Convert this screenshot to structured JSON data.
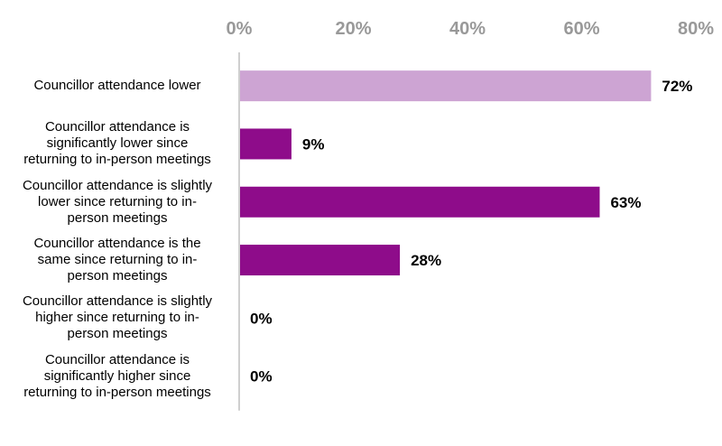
{
  "chart_data": {
    "type": "bar",
    "orientation": "horizontal",
    "categories": [
      "Councillor attendance lower",
      "Councillor attendance is significantly lower since returning to in-person meetings",
      "Councillor attendance is slightly lower since returning to in-person meetings",
      "Councillor attendance is the same since returning to in-person meetings",
      "Councillor attendance is slightly higher since returning to in-person meetings",
      "Councillor attendance is significantly higher since returning to in-person meetings"
    ],
    "category_lines": [
      [
        "Councillor attendance lower"
      ],
      [
        "Councillor attendance is",
        "significantly lower since",
        "returning to in-person meetings"
      ],
      [
        "Councillor attendance is slightly",
        "lower since returning to in-",
        "person meetings"
      ],
      [
        "Councillor attendance is the",
        "same since returning to in-",
        "person meetings"
      ],
      [
        "Councillor attendance is slightly",
        "higher since returning to in-",
        "person meetings"
      ],
      [
        "Councillor attendance is",
        "significantly higher since",
        "returning to in-person meetings"
      ]
    ],
    "values": [
      72,
      9,
      63,
      28,
      0,
      0
    ],
    "data_labels": [
      "72%",
      "9%",
      "63%",
      "28%",
      "0%",
      "0%"
    ],
    "bar_colors": [
      "#cda4d3",
      "#8e0c8a",
      "#8e0c8a",
      "#8e0c8a",
      "#8e0c8a",
      "#8e0c8a"
    ],
    "axis": {
      "position": "top",
      "xlim": [
        0,
        80
      ],
      "ticks": [
        0,
        20,
        40,
        60,
        80
      ],
      "tick_labels": [
        "0%",
        "20%",
        "40%",
        "60%",
        "80%"
      ],
      "tick_label_color": "#999999",
      "axis_line_color": "#bfbfbf"
    },
    "grid": false,
    "legend": "none"
  }
}
